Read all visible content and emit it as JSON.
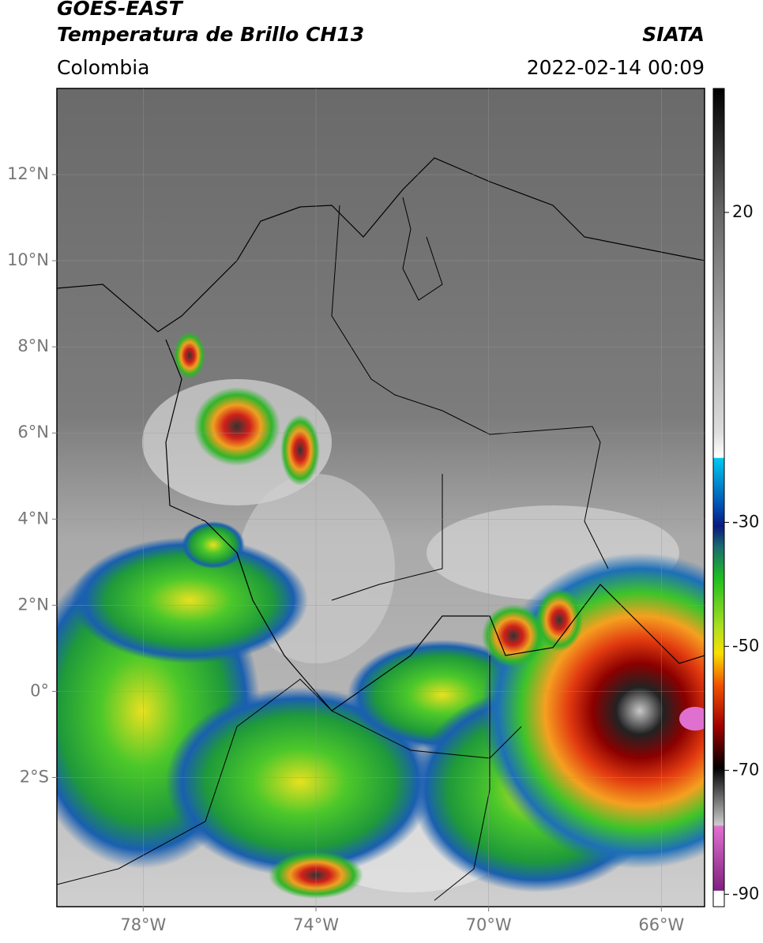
{
  "header": {
    "satellite": "GOES-EAST",
    "product": "Temperatura de Brillo CH13",
    "source": "SIATA",
    "region": "Colombia",
    "datetime": "2022-02-14 00:09"
  },
  "map": {
    "xlim": [
      -80,
      -65
    ],
    "ylim": [
      -5,
      14
    ],
    "xticks": [
      {
        "value": -78,
        "label": "78°W"
      },
      {
        "value": -74,
        "label": "74°W"
      },
      {
        "value": -70,
        "label": "70°W"
      },
      {
        "value": -66,
        "label": "66°W"
      }
    ],
    "yticks": [
      {
        "value": 12,
        "label": "12°N"
      },
      {
        "value": 10,
        "label": "10°N"
      },
      {
        "value": 8,
        "label": "8°N"
      },
      {
        "value": 6,
        "label": "6°N"
      },
      {
        "value": 4,
        "label": "4°N"
      },
      {
        "value": 2,
        "label": "2°N"
      },
      {
        "value": 0,
        "label": "0°"
      },
      {
        "value": -2,
        "label": "2°S"
      }
    ],
    "grid": true
  },
  "colorbar": {
    "lim": [
      -92,
      40
    ],
    "ticks": [
      20,
      -30,
      -50,
      -70,
      -90
    ]
  }
}
